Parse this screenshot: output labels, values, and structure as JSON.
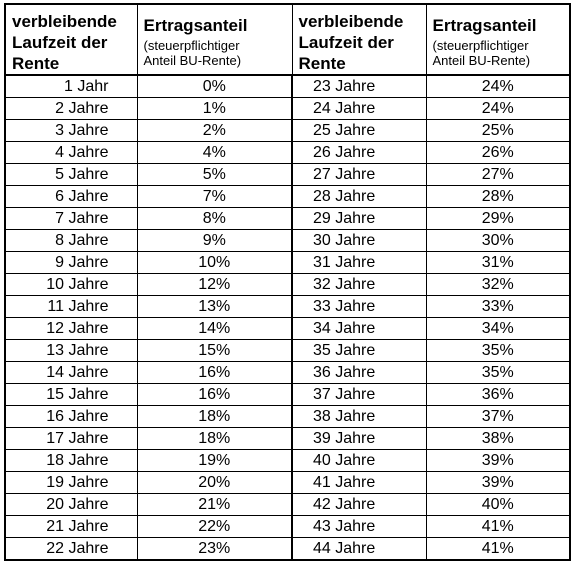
{
  "header": {
    "left_col1": [
      "verbleibende",
      "Laufzeit der",
      "Rente"
    ],
    "left_col2_title": "Ertragsanteil",
    "left_col2_sub": [
      "(steuerpflichtiger",
      "Anteil BU-Rente)"
    ],
    "right_col1": [
      "verbleibende",
      "Laufzeit der",
      "Rente"
    ],
    "right_col2_title": "Ertragsanteil",
    "right_col2_sub": [
      "(steuerpflichtiger",
      "Anteil BU-Rente)"
    ]
  },
  "rows": [
    {
      "l_year": "1 Jahr",
      "l_pct": "0%",
      "r_year": "23 Jahre",
      "r_pct": "24%"
    },
    {
      "l_year": "2 Jahre",
      "l_pct": "1%",
      "r_year": "24 Jahre",
      "r_pct": "24%"
    },
    {
      "l_year": "3 Jahre",
      "l_pct": "2%",
      "r_year": "25 Jahre",
      "r_pct": "25%"
    },
    {
      "l_year": "4 Jahre",
      "l_pct": "4%",
      "r_year": "26 Jahre",
      "r_pct": "26%"
    },
    {
      "l_year": "5 Jahre",
      "l_pct": "5%",
      "r_year": "27 Jahre",
      "r_pct": "27%"
    },
    {
      "l_year": "6 Jahre",
      "l_pct": "7%",
      "r_year": "28 Jahre",
      "r_pct": "28%"
    },
    {
      "l_year": "7 Jahre",
      "l_pct": "8%",
      "r_year": "29 Jahre",
      "r_pct": "29%"
    },
    {
      "l_year": "8 Jahre",
      "l_pct": "9%",
      "r_year": "30 Jahre",
      "r_pct": "30%"
    },
    {
      "l_year": "9 Jahre",
      "l_pct": "10%",
      "r_year": "31 Jahre",
      "r_pct": "31%"
    },
    {
      "l_year": "10 Jahre",
      "l_pct": "12%",
      "r_year": "32 Jahre",
      "r_pct": "32%"
    },
    {
      "l_year": "11 Jahre",
      "l_pct": "13%",
      "r_year": "33 Jahre",
      "r_pct": "33%"
    },
    {
      "l_year": "12 Jahre",
      "l_pct": "14%",
      "r_year": "34 Jahre",
      "r_pct": "34%"
    },
    {
      "l_year": "13 Jahre",
      "l_pct": "15%",
      "r_year": "35 Jahre",
      "r_pct": "35%"
    },
    {
      "l_year": "14 Jahre",
      "l_pct": "16%",
      "r_year": "36 Jahre",
      "r_pct": "35%"
    },
    {
      "l_year": "15 Jahre",
      "l_pct": "16%",
      "r_year": "37 Jahre",
      "r_pct": "36%"
    },
    {
      "l_year": "16 Jahre",
      "l_pct": "18%",
      "r_year": "38 Jahre",
      "r_pct": "37%"
    },
    {
      "l_year": "17 Jahre",
      "l_pct": "18%",
      "r_year": "39 Jahre",
      "r_pct": "38%"
    },
    {
      "l_year": "18 Jahre",
      "l_pct": "19%",
      "r_year": "40 Jahre",
      "r_pct": "39%"
    },
    {
      "l_year": "19 Jahre",
      "l_pct": "20%",
      "r_year": "41 Jahre",
      "r_pct": "39%"
    },
    {
      "l_year": "20 Jahre",
      "l_pct": "21%",
      "r_year": "42 Jahre",
      "r_pct": "40%"
    },
    {
      "l_year": "21 Jahre",
      "l_pct": "22%",
      "r_year": "43 Jahre",
      "r_pct": "41%"
    },
    {
      "l_year": "22 Jahre",
      "l_pct": "23%",
      "r_year": "44 Jahre",
      "r_pct": "41%"
    }
  ]
}
